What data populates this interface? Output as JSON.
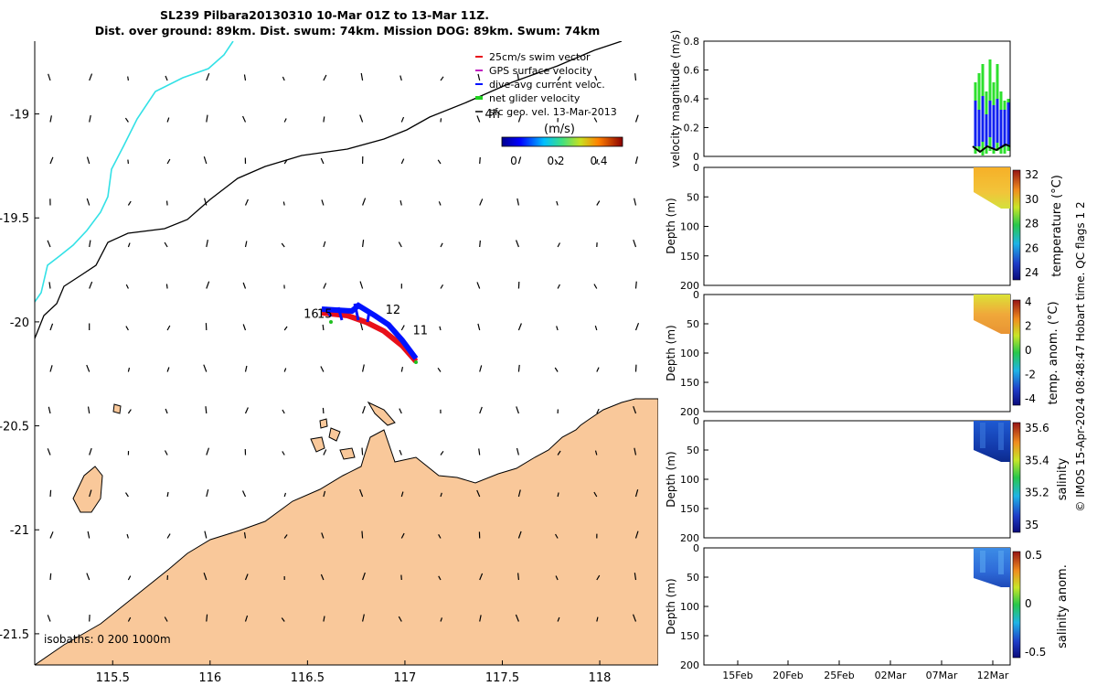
{
  "title": {
    "line1": "SL239 Pilbara20130310 10-Mar 01Z to 13-Mar 11Z.",
    "line2": "Dist. over ground: 89km. Dist. swum: 74km. Mission DOG: 89km. Swum: 74km"
  },
  "map": {
    "x_ticks": [
      "115.5",
      "116",
      "116.5",
      "117",
      "117.5",
      "118"
    ],
    "y_ticks": [
      "-19",
      "-19.5",
      "-20",
      "-20.5",
      "-21",
      "-21.5"
    ],
    "xlim": [
      115.1,
      118.3
    ],
    "ylim": [
      -21.65,
      -18.65
    ],
    "legend": [
      "25cm/s swim vector",
      "GPS surface velocity",
      "dive-avg current veloc.",
      "net glider velocity",
      "sfc geo. vel. 13-Mar-2013"
    ],
    "colorbar": {
      "title": "(m/s)",
      "ticks": [
        "0",
        "0.2",
        "0.4"
      ]
    },
    "isobath_label": "isobaths: 0   200  1000m",
    "track_labels": [
      {
        "text": "16",
        "lon": 116.48,
        "lat": -19.98
      },
      {
        "text": "15",
        "lon": 116.55,
        "lat": -19.98
      },
      {
        "text": "12",
        "lon": 116.9,
        "lat": -19.96
      },
      {
        "text": "11",
        "lon": 117.04,
        "lat": -20.06
      },
      {
        "text": "4h",
        "lon": 117.41,
        "lat": -19.02
      }
    ],
    "colors": {
      "land": "#F9C89A",
      "coastline_cyan": "#33E1E6",
      "track_blue": "#0012FF",
      "track_red": "#E8101A"
    }
  },
  "time_axis": {
    "ticks": [
      "15Feb",
      "20Feb",
      "25Feb",
      "02Mar",
      "07Mar",
      "12Mar"
    ]
  },
  "panels": [
    {
      "ylabel": "velocity magnitude (m/s)",
      "yticks": [
        "0",
        "0.2",
        "0.4",
        "0.6",
        "0.8"
      ],
      "ylim": [
        0,
        0.8
      ]
    },
    {
      "ylabel": "Depth (m)",
      "yticks": [
        "0",
        "50",
        "100",
        "150",
        "200"
      ],
      "cbar_label": "temperature (°C)",
      "cbar_ticks": [
        "32",
        "30",
        "28",
        "26",
        "24"
      ]
    },
    {
      "ylabel": "Depth (m)",
      "yticks": [
        "0",
        "50",
        "100",
        "150",
        "200"
      ],
      "cbar_label": "temp. anom. (°C)",
      "cbar_ticks": [
        "4",
        "2",
        "0",
        "-2",
        "-4"
      ]
    },
    {
      "ylabel": "Depth (m)",
      "yticks": [
        "0",
        "50",
        "100",
        "150",
        "200"
      ],
      "cbar_label": "salinity",
      "cbar_ticks": [
        "35.6",
        "35.4",
        "35.2",
        "35"
      ]
    },
    {
      "ylabel": "Depth (m)",
      "yticks": [
        "0",
        "50",
        "100",
        "150",
        "200"
      ],
      "cbar_label": "salinity anom.",
      "cbar_ticks": [
        "0.5",
        "0",
        "-0.5"
      ]
    }
  ],
  "footer": "© IMOS 15-Apr-2024 08:48:47 Hobart time. QC flags 1  2",
  "chart_data": {
    "type": "scatter",
    "title": "SL239 Pilbara20130310 10-Mar 01Z to 13-Mar 11Z.",
    "series": [
      {
        "name": "glider track",
        "x": [
          116.6,
          116.7,
          116.8,
          116.9,
          117.0,
          117.06
        ],
        "y": [
          -19.96,
          -19.97,
          -19.95,
          -20.0,
          -20.08,
          -20.15
        ]
      }
    ],
    "xlim": [
      115.1,
      118.3
    ],
    "ylim": [
      -21.65,
      -18.65
    ]
  }
}
